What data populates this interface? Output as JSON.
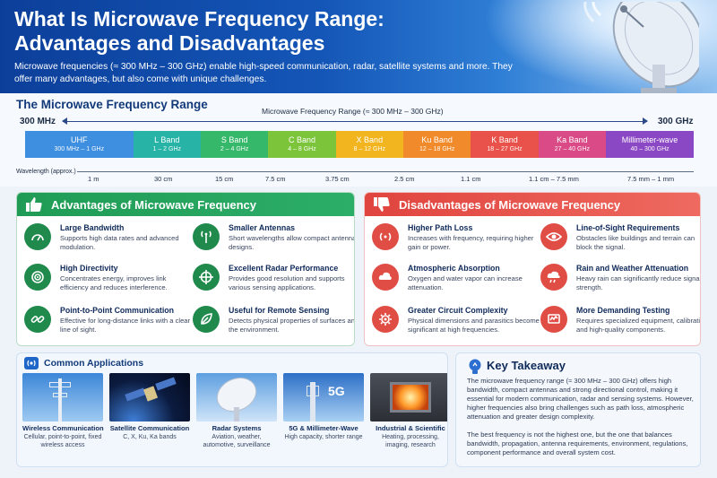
{
  "header": {
    "title": "What Is Microwave Frequency Range: Advantages and Disadvantages",
    "subtitle": "Microwave frequencies (≈ 300 MHz – 300 GHz) enable high-speed communication, radar, satellite systems and more. They offer many advantages, but also come with unique challenges."
  },
  "range": {
    "title": "The Microwave Frequency Range",
    "low": "300 MHz",
    "high": "300 GHz",
    "arrow_label": "Microwave Frequency Range (≈ 300 MHz – 300 GHz)",
    "bands": [
      {
        "name": "UHF",
        "range": "300 MHz – 1 GHz",
        "color": "#3f8fe0"
      },
      {
        "name": "L Band",
        "range": "1 – 2 GHz",
        "color": "#27b3a6"
      },
      {
        "name": "S Band",
        "range": "2 – 4 GHz",
        "color": "#36b86a"
      },
      {
        "name": "C Band",
        "range": "4 – 8 GHz",
        "color": "#7cc43a"
      },
      {
        "name": "X Band",
        "range": "8 – 12 GHz",
        "color": "#f2b51f"
      },
      {
        "name": "Ku Band",
        "range": "12 – 18 GHz",
        "color": "#f18a2b"
      },
      {
        "name": "K Band",
        "range": "18 – 27 GHz",
        "color": "#e9524a"
      },
      {
        "name": "Ka Band",
        "range": "27 – 40 GHz",
        "color": "#d94a86"
      },
      {
        "name": "Millimeter-wave",
        "range": "40 – 300 GHz",
        "color": "#8b48c4"
      }
    ],
    "wavelength_title": "Wavelength (approx.)",
    "wavelengths": [
      "1 m",
      "30 cm",
      "15 cm",
      "7.5 cm",
      "3.75 cm",
      "2.5 cm",
      "1.1 cm",
      "1.1 cm – 7.5 mm",
      "7.5 mm – 1 mm"
    ]
  },
  "advantages": {
    "title": "Advantages of Microwave Frequency",
    "items": [
      {
        "title": "Large Bandwidth",
        "desc": "Supports high data rates and advanced modulation.",
        "icon": "gauge-icon"
      },
      {
        "title": "Smaller Antennas",
        "desc": "Short wavelengths allow compact antenna designs.",
        "icon": "antenna-icon"
      },
      {
        "title": "High Directivity",
        "desc": "Concentrates energy, improves link efficiency and reduces interference.",
        "icon": "target-icon"
      },
      {
        "title": "Excellent Radar Performance",
        "desc": "Provides good resolution and supports various sensing applications.",
        "icon": "crosshair-icon"
      },
      {
        "title": "Point-to-Point Communication",
        "desc": "Effective for long-distance links with a clear line of sight.",
        "icon": "link-icon"
      },
      {
        "title": "Useful for Remote Sensing",
        "desc": "Detects physical properties of surfaces and the environment.",
        "icon": "leaf-icon"
      }
    ]
  },
  "disadvantages": {
    "title": "Disadvantages of Microwave Frequency",
    "items": [
      {
        "title": "Higher Path Loss",
        "desc": "Increases with frequency, requiring higher gain or power.",
        "icon": "signal-icon"
      },
      {
        "title": "Line-of-Sight Requirements",
        "desc": "Obstacles like buildings and terrain can block the signal.",
        "icon": "eye-icon"
      },
      {
        "title": "Atmospheric Absorption",
        "desc": "Oxygen and water vapor can increase attenuation.",
        "icon": "cloud-icon"
      },
      {
        "title": "Rain and Weather Attenuation",
        "desc": "Heavy rain can significantly reduce signal strength.",
        "icon": "rain-icon"
      },
      {
        "title": "Greater Circuit Complexity",
        "desc": "Physical dimensions and parasitics become significant at high frequencies.",
        "icon": "gear-icon"
      },
      {
        "title": "More Demanding Testing",
        "desc": "Requires specialized equipment, calibration and high-quality components.",
        "icon": "testing-icon"
      }
    ]
  },
  "applications": {
    "title": "Common Applications",
    "items": [
      {
        "title": "Wireless Communication",
        "desc": "Cellular, point-to-point, fixed wireless access"
      },
      {
        "title": "Satellite Communication",
        "desc": "C, X, Ku, Ka bands"
      },
      {
        "title": "Radar Systems",
        "desc": "Aviation, weather, automotive, surveillance"
      },
      {
        "title": "5G & Millimeter-Wave",
        "desc": "High capacity, shorter range",
        "badge": "5G"
      },
      {
        "title": "Industrial & Scientific",
        "desc": "Heating, processing, imaging, research"
      }
    ]
  },
  "takeaway": {
    "title": "Key Takeaway",
    "p1": "The microwave frequency range (≈ 300 MHz – 300 GHz) offers high bandwidth, compact antennas and strong directional control, making it essential for modern communication, radar and sensing systems. However, higher frequencies also bring challenges such as path loss, atmospheric attenuation and greater design complexity.",
    "p2": "The best frequency is not the highest one, but the one that balances bandwidth, propagation, antenna requirements, environment, regulations, component performance and overall system cost."
  }
}
